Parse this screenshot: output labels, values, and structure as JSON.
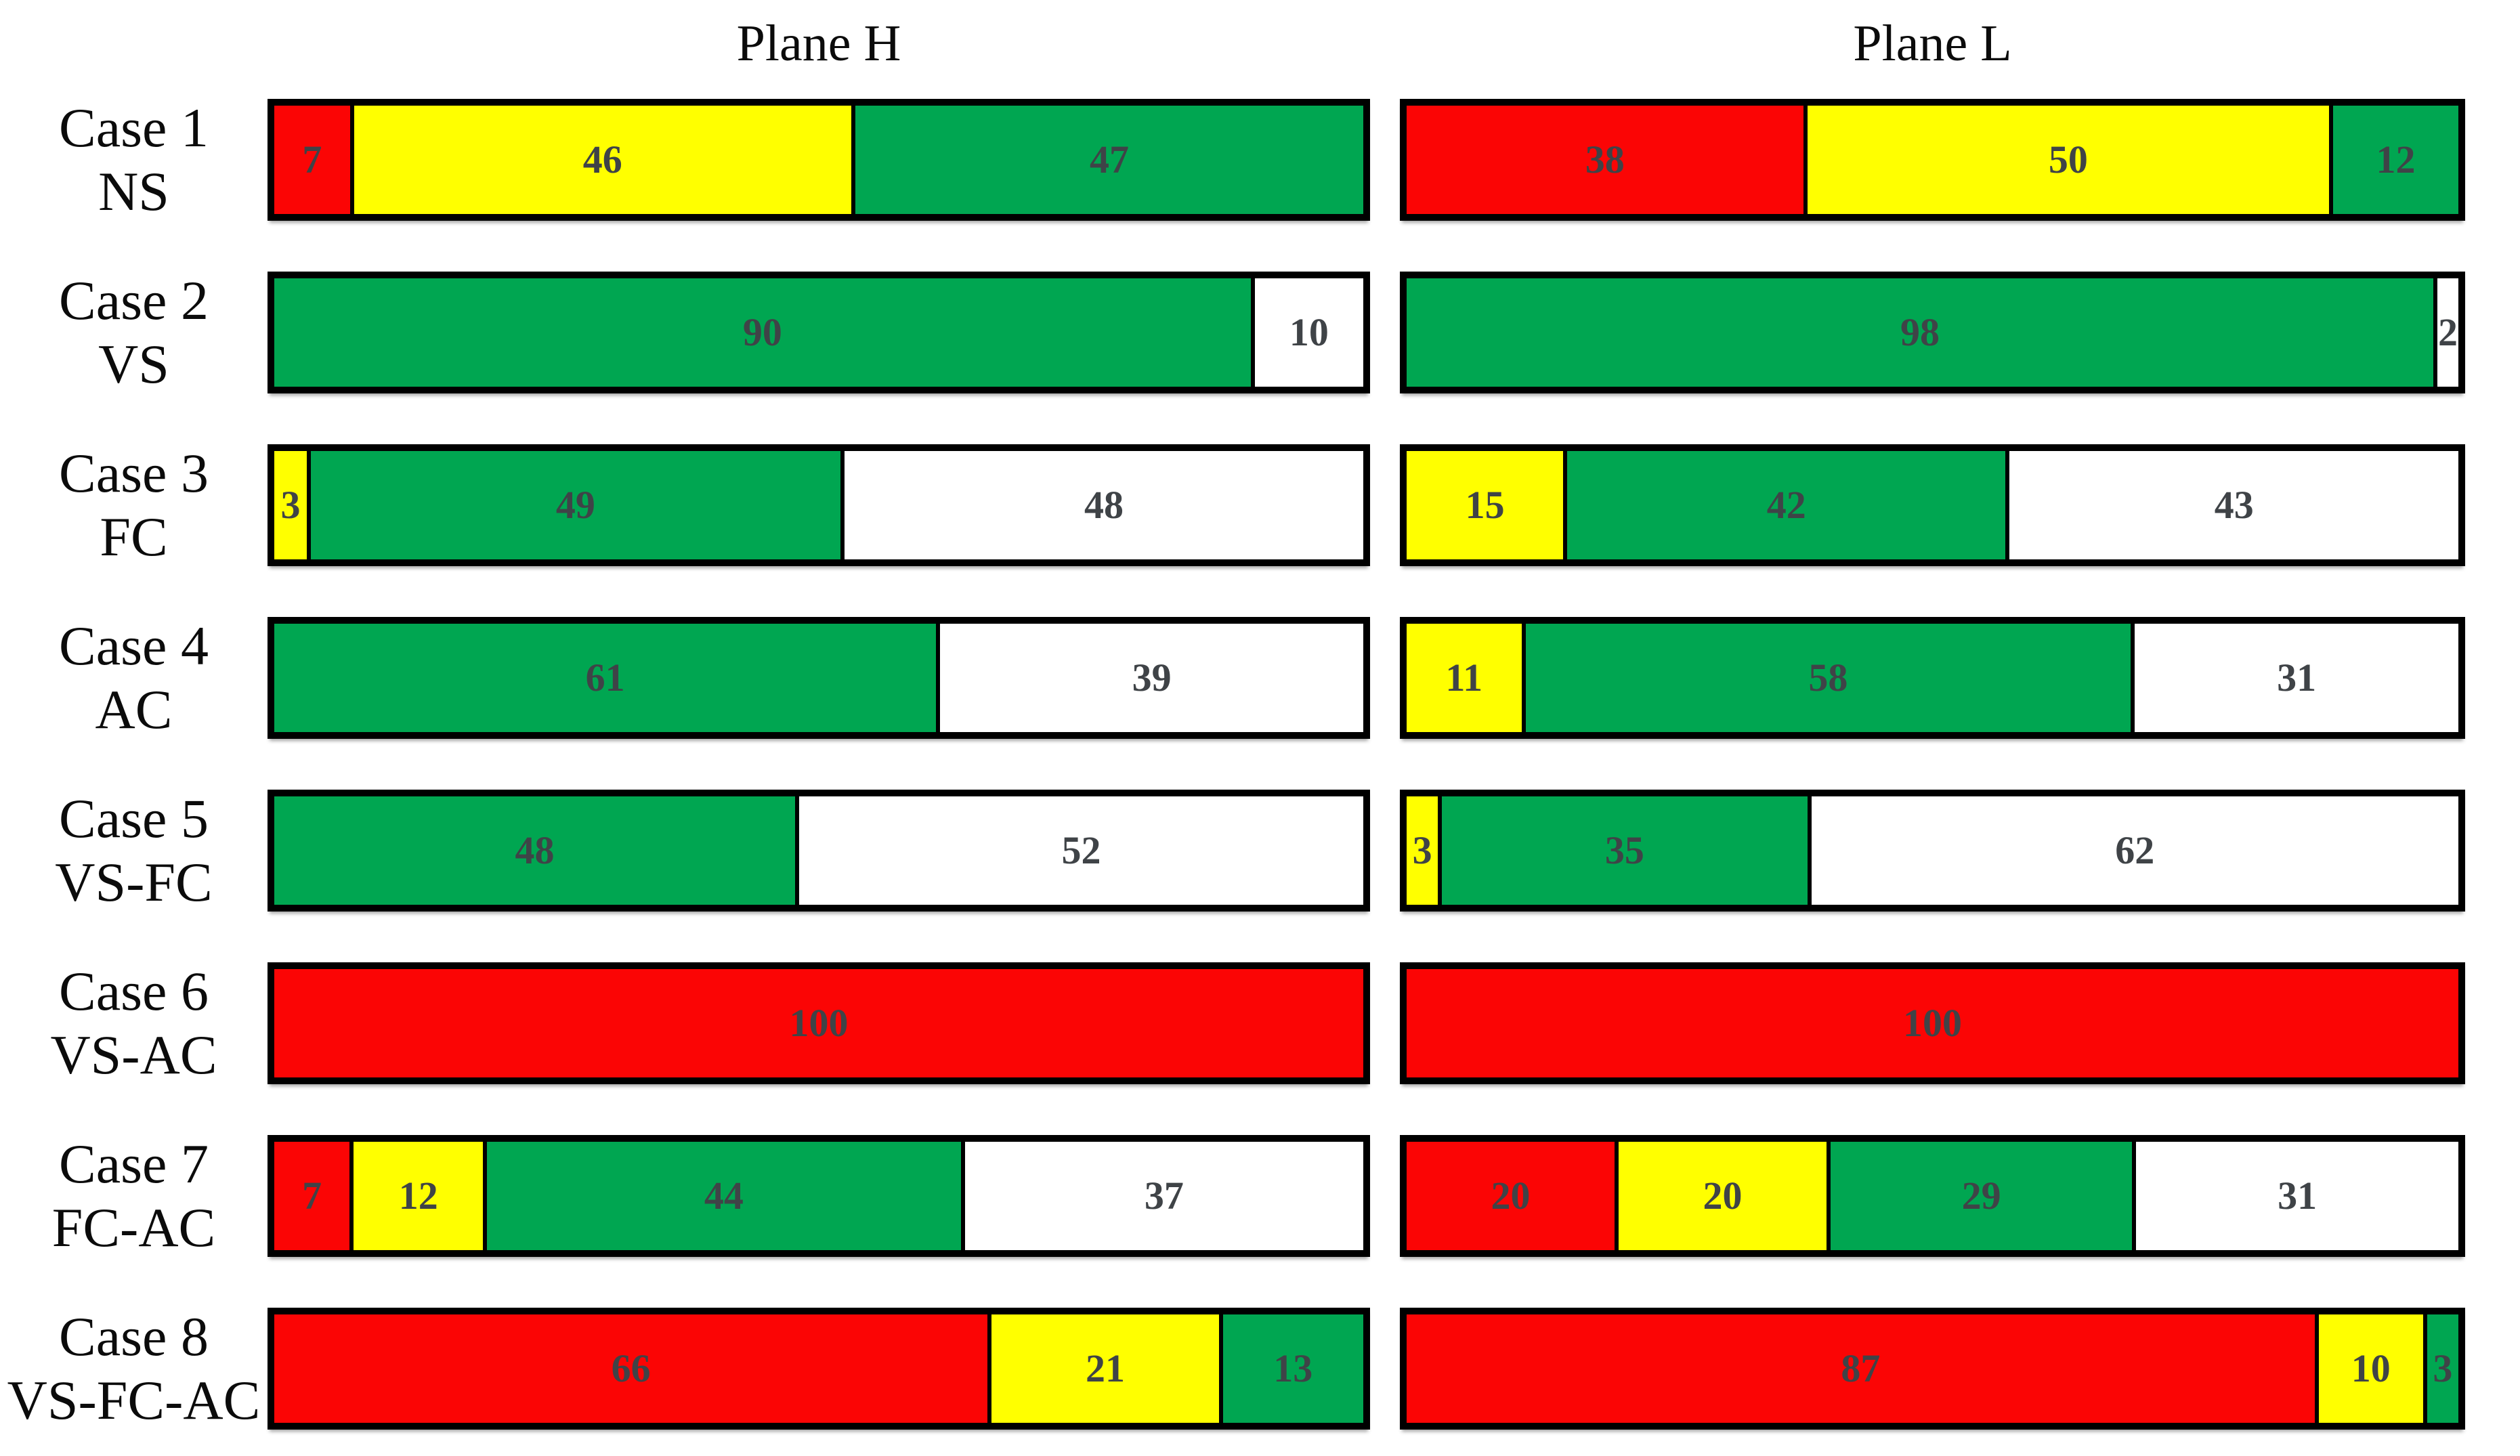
{
  "chart_data": {
    "type": "bar",
    "variant": "horizontal-stacked-100-percent",
    "legend_position": "none",
    "grid": false,
    "columns": [
      {
        "id": "H",
        "title": "Plane H"
      },
      {
        "id": "L",
        "title": "Plane L"
      }
    ],
    "palette": {
      "red": "#FB0505",
      "yellow": "#FFFF00",
      "green": "#00A651",
      "white": "#FFFFFF"
    },
    "value_color": "#3F4347",
    "border_color": "#000000",
    "rows": [
      {
        "case": "Case 1",
        "code": "NS",
        "H": [
          {
            "color": "red",
            "value": 7
          },
          {
            "color": "yellow",
            "value": 46
          },
          {
            "color": "green",
            "value": 47
          }
        ],
        "L": [
          {
            "color": "red",
            "value": 38
          },
          {
            "color": "yellow",
            "value": 50
          },
          {
            "color": "green",
            "value": 12
          }
        ]
      },
      {
        "case": "Case 2",
        "code": "VS",
        "H": [
          {
            "color": "green",
            "value": 90
          },
          {
            "color": "white",
            "value": 10
          }
        ],
        "L": [
          {
            "color": "green",
            "value": 98
          },
          {
            "color": "white",
            "value": 2
          }
        ]
      },
      {
        "case": "Case 3",
        "code": "FC",
        "H": [
          {
            "color": "yellow",
            "value": 3
          },
          {
            "color": "green",
            "value": 49
          },
          {
            "color": "white",
            "value": 48
          }
        ],
        "L": [
          {
            "color": "yellow",
            "value": 15
          },
          {
            "color": "green",
            "value": 42
          },
          {
            "color": "white",
            "value": 43
          }
        ]
      },
      {
        "case": "Case 4",
        "code": "AC",
        "H": [
          {
            "color": "green",
            "value": 61
          },
          {
            "color": "white",
            "value": 39
          }
        ],
        "L": [
          {
            "color": "yellow",
            "value": 11
          },
          {
            "color": "green",
            "value": 58
          },
          {
            "color": "white",
            "value": 31
          }
        ]
      },
      {
        "case": "Case 5",
        "code": "VS-FC",
        "H": [
          {
            "color": "green",
            "value": 48
          },
          {
            "color": "white",
            "value": 52
          }
        ],
        "L": [
          {
            "color": "yellow",
            "value": 3
          },
          {
            "color": "green",
            "value": 35
          },
          {
            "color": "white",
            "value": 62
          }
        ]
      },
      {
        "case": "Case 6",
        "code": "VS-AC",
        "H": [
          {
            "color": "red",
            "value": 100
          }
        ],
        "L": [
          {
            "color": "red",
            "value": 100
          }
        ]
      },
      {
        "case": "Case 7",
        "code": "FC-AC",
        "H": [
          {
            "color": "red",
            "value": 7
          },
          {
            "color": "yellow",
            "value": 12
          },
          {
            "color": "green",
            "value": 44
          },
          {
            "color": "white",
            "value": 37
          }
        ],
        "L": [
          {
            "color": "red",
            "value": 20
          },
          {
            "color": "yellow",
            "value": 20
          },
          {
            "color": "green",
            "value": 29
          },
          {
            "color": "white",
            "value": 31
          }
        ]
      },
      {
        "case": "Case 8",
        "code": "VS-FC-AC",
        "H": [
          {
            "color": "red",
            "value": 66
          },
          {
            "color": "yellow",
            "value": 21
          },
          {
            "color": "green",
            "value": 13
          }
        ],
        "L": [
          {
            "color": "red",
            "value": 87
          },
          {
            "color": "yellow",
            "value": 10
          },
          {
            "color": "green",
            "value": 3
          }
        ]
      }
    ]
  }
}
